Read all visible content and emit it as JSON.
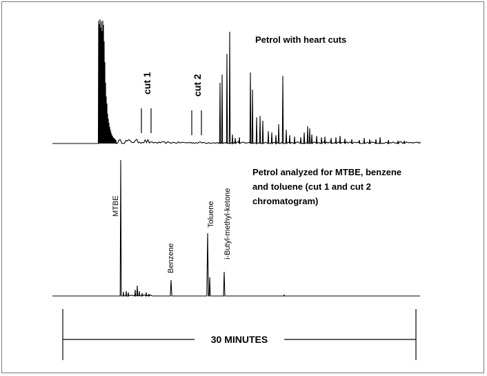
{
  "chart_data": [
    {
      "type": "line",
      "title": "Petrol with heart cuts",
      "xlabel": "",
      "ylabel": "",
      "cut_labels": [
        "cut 1",
        "cut 2"
      ],
      "peak_labels": [],
      "grid": false,
      "legend": "none"
    },
    {
      "type": "line",
      "title": "Petrol analyzed for MTBE, benzene and toluene (cut 1 and cut 2 chromatogram)",
      "title_lines": [
        "Petrol analyzed for MTBE, benzene",
        "and toluene (cut 1 and cut 2",
        "chromatogram)"
      ],
      "xlabel": "",
      "ylabel": "",
      "peak_labels": [
        "MTBE",
        "Benzene",
        "Toluene",
        "i-Butyl-methyl-ketone"
      ],
      "grid": false,
      "legend": "none"
    }
  ],
  "time_scale": {
    "label": "30 MINUTES",
    "minutes": 30
  },
  "colors": {
    "trace": "#000000",
    "background": "#ffffff",
    "frame": "#7a7a7a"
  }
}
